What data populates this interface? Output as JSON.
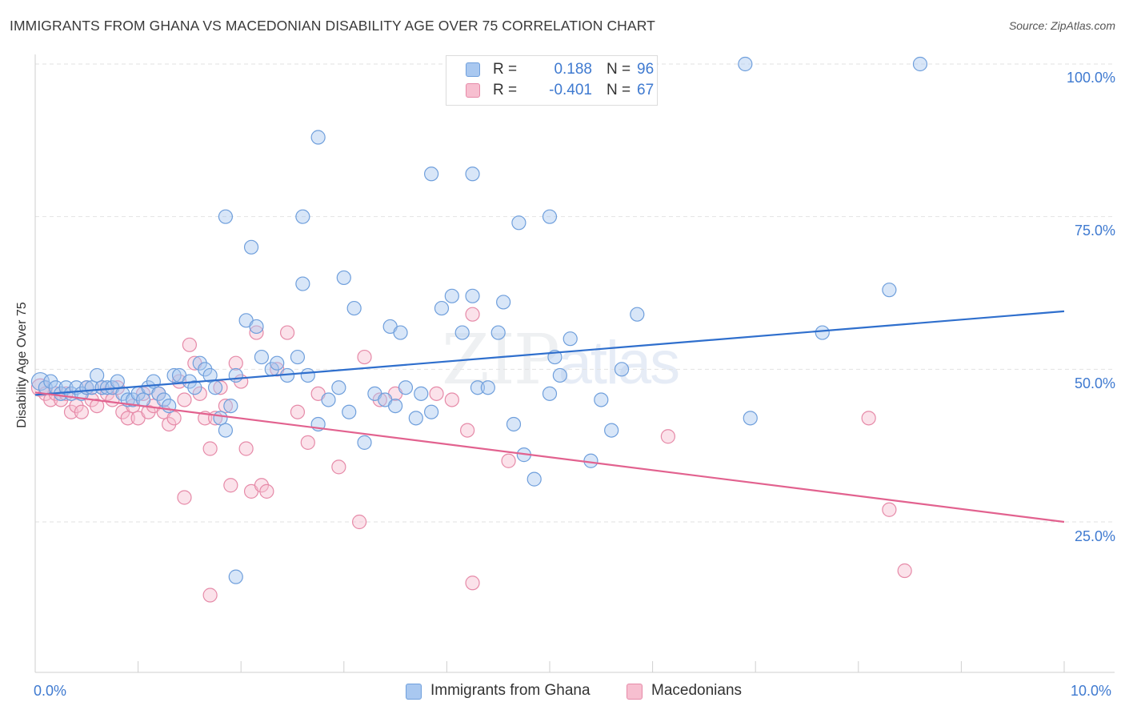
{
  "header": {
    "title": "IMMIGRANTS FROM GHANA VS MACEDONIAN DISABILITY AGE OVER 75 CORRELATION CHART",
    "source": "Source: ZipAtlas.com"
  },
  "watermark": {
    "zip": "ZIP",
    "atlas": "atlas"
  },
  "legend": {
    "rows": [
      {
        "r_label": "R =",
        "r_value": "0.188",
        "n_label": "N =",
        "n_value": "96",
        "color": "#a9c8f0",
        "border": "#6f9fdc"
      },
      {
        "r_label": "R =",
        "r_value": "-0.401",
        "n_label": "N =",
        "n_value": "67",
        "color": "#f7bfd0",
        "border": "#e68aa8"
      }
    ]
  },
  "bottom_legend": [
    {
      "label": "Immigrants from Ghana",
      "color": "#a9c8f0",
      "border": "#6f9fdc"
    },
    {
      "label": "Macedonians",
      "color": "#f7bfd0",
      "border": "#e68aa8"
    }
  ],
  "axis": {
    "ylabel": "Disability Age Over 75",
    "x_start_label": "0.0%",
    "x_end_label": "10.0%",
    "y_tick_labels": [
      "100.0%",
      "75.0%",
      "50.0%",
      "25.0%"
    ]
  },
  "colors": {
    "blue_fill": "#a9c8f0",
    "blue_stroke": "#6f9fdc",
    "blue_line": "#2f6fcd",
    "pink_fill": "#f7bfd0",
    "pink_stroke": "#e68aa8",
    "pink_line": "#e2628f",
    "grid": "#e2e2e2",
    "tick_text": "#3f7ad0"
  },
  "chart_data": {
    "type": "scatter",
    "title": "IMMIGRANTS FROM GHANA VS MACEDONIAN DISABILITY AGE OVER 75 CORRELATION CHART",
    "xlabel": "",
    "ylabel": "Disability Age Over 75",
    "xlim": [
      0,
      10
    ],
    "ylim": [
      0,
      102
    ],
    "x_unit": "%",
    "y_unit": "%",
    "y_ticks": [
      25,
      50,
      75,
      100
    ],
    "grid": true,
    "legend_position": "top-center",
    "series": [
      {
        "name": "Immigrants from Ghana",
        "r": 0.188,
        "n": 96,
        "trend": {
          "x": [
            0,
            10
          ],
          "y": [
            45.8,
            59.5
          ]
        },
        "points": [
          [
            0.05,
            48
          ],
          [
            0.1,
            47
          ],
          [
            0.15,
            48
          ],
          [
            0.2,
            47
          ],
          [
            0.25,
            46
          ],
          [
            0.3,
            47
          ],
          [
            0.35,
            46
          ],
          [
            0.4,
            47
          ],
          [
            0.45,
            46
          ],
          [
            0.5,
            47
          ],
          [
            0.55,
            47
          ],
          [
            0.6,
            49
          ],
          [
            0.65,
            47
          ],
          [
            0.7,
            47
          ],
          [
            0.75,
            47
          ],
          [
            0.8,
            48
          ],
          [
            0.85,
            46
          ],
          [
            0.9,
            45
          ],
          [
            0.95,
            45
          ],
          [
            1.0,
            46
          ],
          [
            1.05,
            45
          ],
          [
            1.1,
            47
          ],
          [
            1.15,
            48
          ],
          [
            1.2,
            46
          ],
          [
            1.25,
            45
          ],
          [
            1.3,
            44
          ],
          [
            1.35,
            49
          ],
          [
            1.4,
            49
          ],
          [
            1.5,
            48
          ],
          [
            1.55,
            47
          ],
          [
            1.6,
            51
          ],
          [
            1.65,
            50
          ],
          [
            1.7,
            49
          ],
          [
            1.75,
            47
          ],
          [
            1.8,
            42
          ],
          [
            1.85,
            40
          ],
          [
            1.9,
            44
          ],
          [
            1.95,
            49
          ],
          [
            2.05,
            58
          ],
          [
            2.15,
            57
          ],
          [
            2.2,
            52
          ],
          [
            2.3,
            50
          ],
          [
            2.35,
            51
          ],
          [
            2.45,
            49
          ],
          [
            2.55,
            52
          ],
          [
            2.65,
            49
          ],
          [
            2.75,
            41
          ],
          [
            2.85,
            45
          ],
          [
            2.95,
            47
          ],
          [
            3.05,
            43
          ],
          [
            3.1,
            60
          ],
          [
            3.2,
            38
          ],
          [
            3.3,
            46
          ],
          [
            3.4,
            45
          ],
          [
            3.45,
            57
          ],
          [
            3.5,
            44
          ],
          [
            3.55,
            56
          ],
          [
            3.6,
            47
          ],
          [
            3.7,
            42
          ],
          [
            3.75,
            46
          ],
          [
            3.85,
            43
          ],
          [
            3.95,
            60
          ],
          [
            4.05,
            62
          ],
          [
            4.15,
            56
          ],
          [
            4.25,
            62
          ],
          [
            4.3,
            47
          ],
          [
            4.4,
            47
          ],
          [
            4.5,
            56
          ],
          [
            4.55,
            61
          ],
          [
            4.65,
            41
          ],
          [
            4.75,
            36
          ],
          [
            4.85,
            32
          ],
          [
            5.0,
            46
          ],
          [
            5.05,
            52
          ],
          [
            5.1,
            49
          ],
          [
            5.2,
            55
          ],
          [
            5.4,
            35
          ],
          [
            5.5,
            45
          ],
          [
            5.6,
            40
          ],
          [
            5.7,
            50
          ],
          [
            5.85,
            59
          ],
          [
            1.85,
            75
          ],
          [
            2.1,
            70
          ],
          [
            2.6,
            64
          ],
          [
            2.6,
            75
          ],
          [
            2.75,
            88
          ],
          [
            3.0,
            65
          ],
          [
            3.85,
            82
          ],
          [
            4.25,
            82
          ],
          [
            4.7,
            74
          ],
          [
            5.0,
            75
          ],
          [
            6.9,
            100
          ],
          [
            8.6,
            100
          ],
          [
            8.3,
            63
          ],
          [
            7.65,
            56
          ],
          [
            6.95,
            42
          ],
          [
            1.95,
            16
          ]
        ]
      },
      {
        "name": "Macedonians",
        "r": -0.401,
        "n": 67,
        "trend": {
          "x": [
            0,
            10
          ],
          "y": [
            46.2,
            25.0
          ]
        },
        "points": [
          [
            0.05,
            47
          ],
          [
            0.1,
            46
          ],
          [
            0.15,
            45
          ],
          [
            0.2,
            46
          ],
          [
            0.25,
            45
          ],
          [
            0.3,
            46
          ],
          [
            0.35,
            43
          ],
          [
            0.4,
            44
          ],
          [
            0.45,
            43
          ],
          [
            0.5,
            47
          ],
          [
            0.55,
            45
          ],
          [
            0.6,
            44
          ],
          [
            0.65,
            47
          ],
          [
            0.7,
            46
          ],
          [
            0.75,
            45
          ],
          [
            0.8,
            47
          ],
          [
            0.85,
            43
          ],
          [
            0.9,
            42
          ],
          [
            0.95,
            44
          ],
          [
            1.0,
            42
          ],
          [
            1.05,
            46
          ],
          [
            1.1,
            43
          ],
          [
            1.15,
            44
          ],
          [
            1.2,
            46
          ],
          [
            1.25,
            43
          ],
          [
            1.3,
            41
          ],
          [
            1.35,
            42
          ],
          [
            1.4,
            48
          ],
          [
            1.45,
            45
          ],
          [
            1.5,
            54
          ],
          [
            1.55,
            51
          ],
          [
            1.6,
            46
          ],
          [
            1.65,
            42
          ],
          [
            1.7,
            37
          ],
          [
            1.75,
            42
          ],
          [
            1.8,
            47
          ],
          [
            1.85,
            44
          ],
          [
            1.9,
            31
          ],
          [
            1.95,
            51
          ],
          [
            2.0,
            48
          ],
          [
            2.05,
            37
          ],
          [
            2.1,
            30
          ],
          [
            2.15,
            56
          ],
          [
            2.2,
            31
          ],
          [
            2.25,
            30
          ],
          [
            2.35,
            50
          ],
          [
            2.45,
            56
          ],
          [
            2.55,
            43
          ],
          [
            2.65,
            38
          ],
          [
            2.75,
            46
          ],
          [
            2.95,
            34
          ],
          [
            3.15,
            25
          ],
          [
            3.2,
            52
          ],
          [
            3.35,
            45
          ],
          [
            3.5,
            46
          ],
          [
            3.9,
            46
          ],
          [
            4.05,
            45
          ],
          [
            4.25,
            59
          ],
          [
            4.2,
            40
          ],
          [
            4.25,
            15
          ],
          [
            4.6,
            35
          ],
          [
            6.15,
            39
          ],
          [
            8.1,
            42
          ],
          [
            8.3,
            27
          ],
          [
            8.45,
            17
          ],
          [
            1.7,
            13
          ],
          [
            1.45,
            29
          ]
        ]
      }
    ]
  }
}
